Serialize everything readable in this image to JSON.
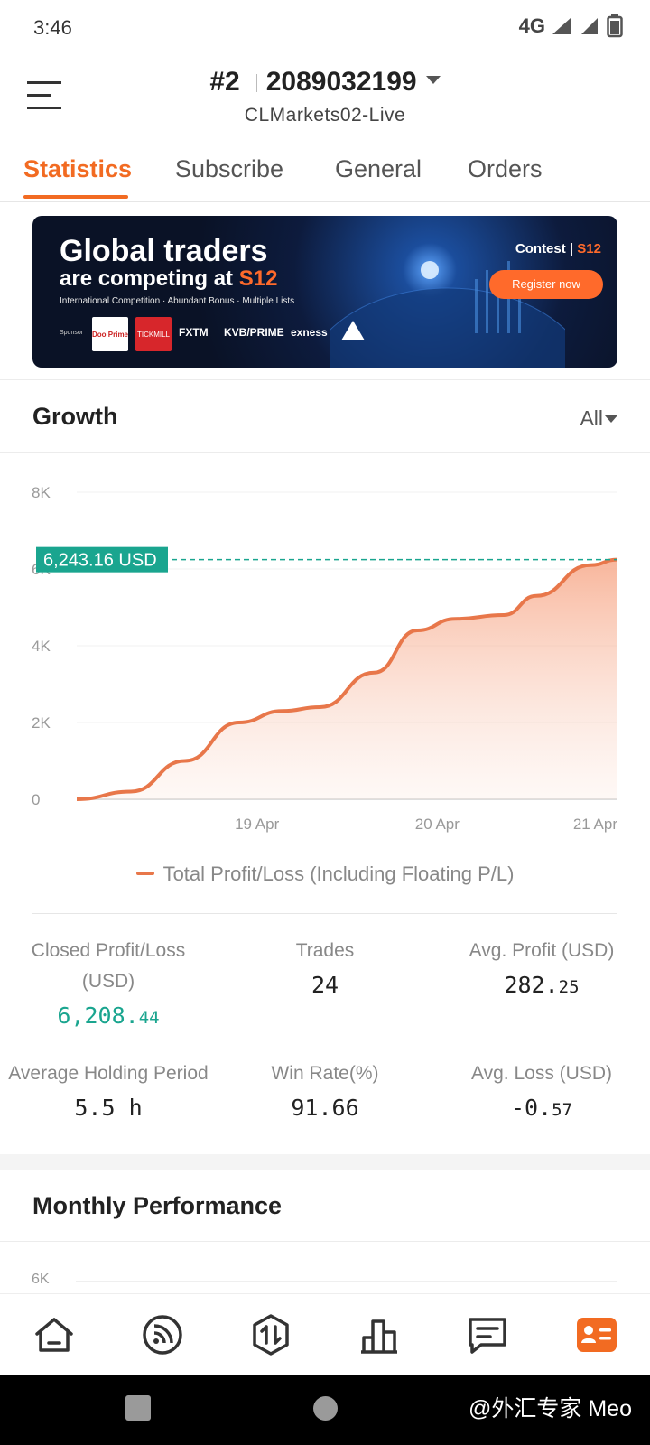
{
  "status_bar": {
    "time": "3:46",
    "network": "4G"
  },
  "header": {
    "account_rank": "#2",
    "account_id": "2089032199",
    "server": "CLMarkets02-Live"
  },
  "tabs": [
    {
      "label": "Statistics",
      "active": true
    },
    {
      "label": "Subscribe",
      "active": false
    },
    {
      "label": "General",
      "active": false
    },
    {
      "label": "Orders",
      "active": false
    }
  ],
  "banner": {
    "title_line1": "Global traders",
    "title_line2": "are competing at",
    "title_line2_highlight": "S12",
    "subtitle": "International Competition · Abundant Bonus · Multiple Lists",
    "sponsor_label": "Sponsor",
    "sponsors": [
      "Doo Prime",
      "TICKMILL",
      "FXTM",
      "KVB/PRIME",
      "exness"
    ],
    "contest_label": "Contest",
    "contest_season": "S12",
    "cta": "Register now",
    "accent": "#ff6a2b"
  },
  "growth": {
    "title": "Growth",
    "filter": "All",
    "current_value_label": "6,243.16 USD",
    "legend": "Total Profit/Loss (Including Floating P/L)"
  },
  "chart_data": {
    "type": "area",
    "title": "",
    "xlabel": "",
    "ylabel": "",
    "ylim": [
      0,
      8000
    ],
    "y_ticks": [
      "0",
      "2K",
      "4K",
      "6K",
      "8K"
    ],
    "x_ticks": [
      "19 Apr",
      "20 Apr",
      "21 Apr"
    ],
    "x": [
      0,
      0.1,
      0.2,
      0.3,
      0.38,
      0.45,
      0.55,
      0.63,
      0.7,
      0.79,
      0.85,
      0.95,
      1.0
    ],
    "series": [
      {
        "name": "Total Profit/Loss (Including Floating P/L)",
        "values": [
          0,
          200,
          1000,
          2000,
          2300,
          2400,
          3300,
          4400,
          4700,
          4800,
          5300,
          6100,
          6243.16
        ]
      }
    ],
    "reference_line": 6243.16,
    "grid": true,
    "line_color": "#e8774a",
    "reference_color": "#1aa58f"
  },
  "stats": {
    "closed_pl_label_1": "Closed Profit/Loss",
    "closed_pl_label_2": "(USD)",
    "closed_pl_int": "6,208.",
    "closed_pl_dec": "44",
    "trades_label": "Trades",
    "trades_value": "24",
    "avg_profit_label": "Avg. Profit (USD)",
    "avg_profit_int": "282.",
    "avg_profit_dec": "25",
    "holding_label": "Average Holding Period",
    "holding_value": "5.5 h",
    "win_rate_label": "Win Rate(%)",
    "win_rate_value": "91.66",
    "avg_loss_label": "Avg. Loss (USD)",
    "avg_loss_int": "-0.",
    "avg_loss_dec": "57"
  },
  "monthly": {
    "title": "Monthly Performance",
    "first_tick": "6K"
  },
  "bottom_nav": [
    "home-icon",
    "feed-icon",
    "trade-icon",
    "ranking-icon",
    "messages-icon",
    "profile-icon"
  ],
  "watermark": "@外汇专家 Meo"
}
